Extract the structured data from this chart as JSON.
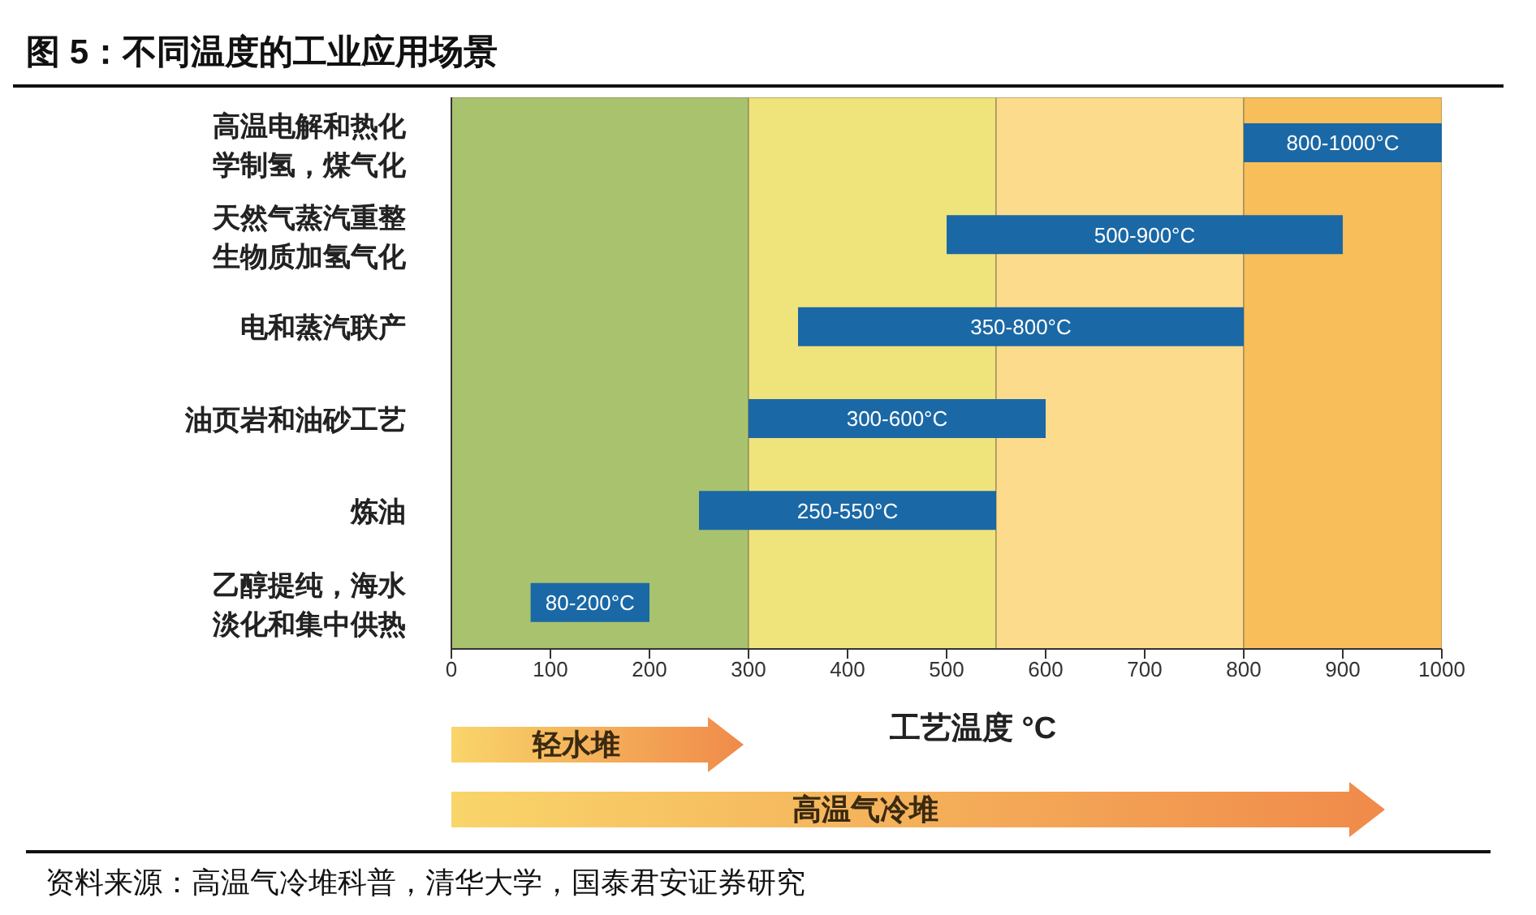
{
  "chart_data": {
    "type": "bar",
    "orientation": "horizontal",
    "title": "图 5：不同温度的工业应用场景",
    "xlabel": "工艺温度 °C",
    "categories": [
      "高温电解和热化学制氢，煤气化",
      "天然气蒸汽重整生物质加氢气化",
      "电和蒸汽联产",
      "油页岩和油砂工艺",
      "炼油",
      "乙醇提纯，海水淡化和集中供热"
    ],
    "base": [
      800,
      500,
      350,
      300,
      250,
      80
    ],
    "values": [
      200,
      400,
      450,
      300,
      300,
      120
    ],
    "value_labels": [
      "800-1000°C",
      "500-900°C",
      "350-800°C",
      "300-600°C",
      "250-550°C",
      "80-200°C"
    ],
    "color": "#1a68a6",
    "xlim": [
      0,
      1000
    ],
    "xticks": [
      0,
      100,
      200,
      300,
      400,
      500,
      600,
      700,
      800,
      900,
      1000
    ],
    "bands": [
      {
        "axis": "x",
        "from": 0,
        "to": 300,
        "color": "#a9c26e"
      },
      {
        "axis": "x",
        "from": 300,
        "to": 550,
        "color": "#efe37c"
      },
      {
        "axis": "x",
        "from": 550,
        "to": 800,
        "color": "#fcdc8c"
      },
      {
        "axis": "x",
        "from": 800,
        "to": 1000,
        "color": "#f8be5a"
      }
    ],
    "grid": false,
    "legend": false,
    "annotations": [
      "轻水堆",
      "高温气冷堆",
      "资料来源：高温气冷堆科普，清华大学，国泰君安证券研究"
    ]
  }
}
